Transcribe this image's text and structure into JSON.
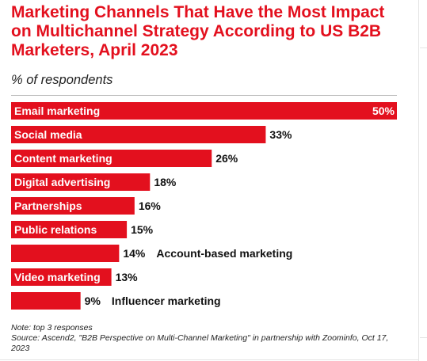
{
  "header": {
    "title": "Marketing Channels That Have the Most Impact on Multichannel Strategy According to US B2B Marketers, April 2023",
    "subtitle": "% of respondents"
  },
  "chart_data": {
    "type": "bar",
    "orientation": "horizontal",
    "title": "Marketing Channels That Have the Most Impact on Multichannel Strategy According to US B2B Marketers, April 2023",
    "subtitle": "% of respondents",
    "categories": [
      "Email marketing",
      "Social media",
      "Content marketing",
      "Digital advertising",
      "Partnerships",
      "Public relations",
      "Account-based marketing",
      "Video marketing",
      "Influencer marketing"
    ],
    "values": [
      50,
      33,
      26,
      18,
      16,
      15,
      14,
      13,
      9
    ],
    "value_labels": [
      "50%",
      "33%",
      "26%",
      "18%",
      "16%",
      "15%",
      "14%",
      "13%",
      "9%"
    ],
    "xlim": [
      0,
      50
    ],
    "bar_color": "#e3101e",
    "grid": false,
    "legend": "none"
  },
  "footnote": {
    "line1": "Note: top 3 responses",
    "line2": "Source: Ascend2, \"B2B Perspective on Multi-Channel Marketing\" in partnership with Zoominfo, Oct 17, 2023"
  },
  "colors": {
    "accent": "#e3101e",
    "text": "#222222",
    "bar_label": "#ffffff"
  }
}
